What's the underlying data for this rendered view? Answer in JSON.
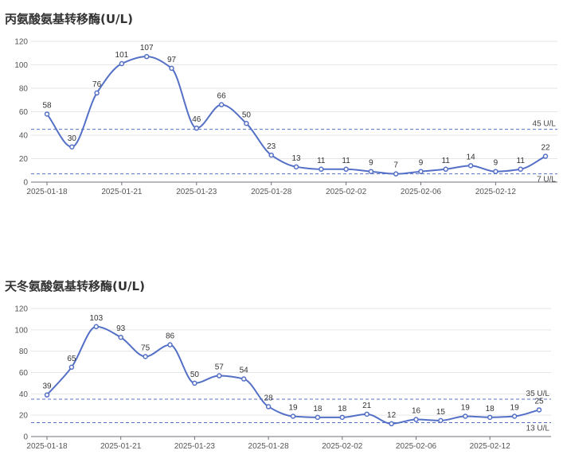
{
  "chart_data": [
    {
      "type": "line",
      "title": "丙氨酸氨基转移酶(U/L)",
      "xlabel": "",
      "ylabel": "",
      "ylim": [
        0,
        120
      ],
      "y_ticks": [
        "0",
        "20",
        "40",
        "60",
        "80",
        "100",
        "120"
      ],
      "x_tick_labels": [
        "2025-01-18",
        "2025-01-21",
        "2025-01-23",
        "2025-01-28",
        "2025-02-02",
        "2025-02-06",
        "2025-02-12"
      ],
      "x_tick_positions": [
        0,
        3,
        6,
        9,
        12,
        15,
        18
      ],
      "values": [
        58,
        30,
        76,
        101,
        107,
        97,
        46,
        66,
        50,
        23,
        13,
        11,
        11,
        9,
        7,
        9,
        11,
        14,
        9,
        11,
        22
      ],
      "reference_lines": [
        {
          "value": 45,
          "label": "45 U/L"
        },
        {
          "value": 7,
          "label": "7 U/L"
        }
      ],
      "grid": true,
      "color": "#5470c6"
    },
    {
      "type": "line",
      "title": "天冬氨酸氨基转移酶(U/L)",
      "xlabel": "",
      "ylabel": "",
      "ylim": [
        0,
        120
      ],
      "y_ticks": [
        "0",
        "20",
        "40",
        "60",
        "80",
        "100",
        "120"
      ],
      "x_tick_labels": [
        "2025-01-18",
        "2025-01-21",
        "2025-01-23",
        "2025-01-28",
        "2025-02-02",
        "2025-02-06",
        "2025-02-12"
      ],
      "x_tick_positions": [
        0,
        3,
        6,
        9,
        12,
        15,
        18
      ],
      "values": [
        39,
        65,
        103,
        93,
        75,
        86,
        50,
        57,
        54,
        28,
        19,
        18,
        18,
        21,
        12,
        16,
        15,
        19,
        18,
        19,
        25
      ],
      "reference_lines": [
        {
          "value": 35,
          "label": "35 U/L"
        },
        {
          "value": 13,
          "label": "13 U/L"
        }
      ],
      "grid": true,
      "color": "#5470c6"
    }
  ]
}
